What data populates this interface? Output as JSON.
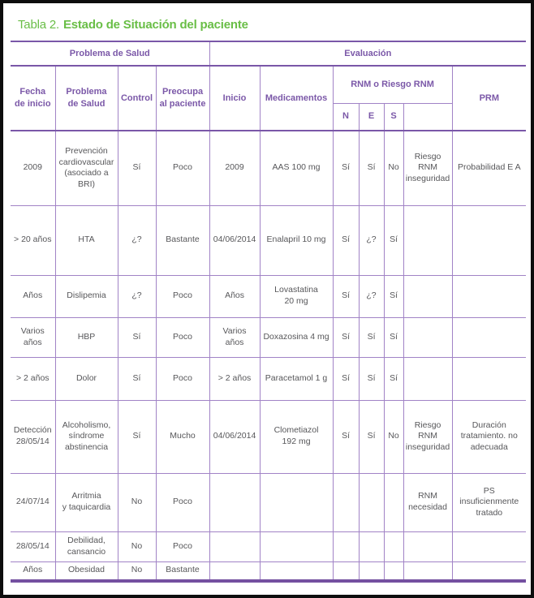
{
  "title": {
    "prefix": "Tabla 2.",
    "text": "Estado de Situación del paciente"
  },
  "colors": {
    "title_green": "#69be46",
    "header_purple": "#7b58a8",
    "line_purple": "#a183c6",
    "rule_purple": "#7a57a8",
    "body_text": "#57575a"
  },
  "table": {
    "group_headers": {
      "problema": "Problema de Salud",
      "evaluacion": "Evaluación"
    },
    "columns": {
      "fecha": "Fecha\nde inicio",
      "problema": "Problema\nde Salud",
      "control": "Control",
      "preocupa": "Preocupa\nal paciente",
      "inicio": "Inicio",
      "medicamentos": "Medicamentos",
      "rnm_group": "RNM o Riesgo RNM",
      "rnm_sub": [
        "N",
        "E",
        "S",
        ""
      ],
      "prm": "PRM"
    },
    "rows": [
      [
        "2009",
        "Prevención\ncardiovascular\n(asociado a\nBRI)",
        "Sí",
        "Poco",
        "2009",
        "AAS 100 mg",
        "Sí",
        "Sí",
        "No",
        "Riesgo\nRNM\ninseguridad",
        "Probabilidad E A"
      ],
      [
        "> 20 años",
        "HTA",
        "¿?",
        "Bastante",
        "04/06/2014",
        "Enalapril 10 mg",
        "Sí",
        "¿?",
        "Sí",
        "",
        ""
      ],
      [
        "Años",
        "Dislipemia",
        "¿?",
        "Poco",
        "Años",
        "Lovastatina\n20 mg",
        "Sí",
        "¿?",
        "Sí",
        "",
        ""
      ],
      [
        "Varios\naños",
        "HBP",
        "Sí",
        "Poco",
        "Varios\naños",
        "Doxazosina 4 mg",
        "Sí",
        "Sí",
        "Sí",
        "",
        ""
      ],
      [
        "> 2 años",
        "Dolor",
        "Sí",
        "Poco",
        "> 2 años",
        "Paracetamol 1 g",
        "Sí",
        "Sí",
        "Sí",
        "",
        ""
      ],
      [
        "Detección\n28/05/14",
        "Alcoholismo,\nsíndrome\nabstinencia",
        "Sí",
        "Mucho",
        "04/06/2014",
        "Clometiazol\n192 mg",
        "Sí",
        "Sí",
        "No",
        "Riesgo\nRNM\ninseguridad",
        "Duración\ntratamiento. no\nadecuada"
      ],
      [
        "24/07/14",
        "Arritmia\ny taquicardia",
        "No",
        "Poco",
        "",
        "",
        "",
        "",
        "",
        "RNM\nnecesidad",
        "PS\ninsuficienmente\ntratado"
      ],
      [
        "28/05/14",
        "Debilidad,\ncansancio",
        "No",
        "Poco",
        "",
        "",
        "",
        "",
        "",
        "",
        ""
      ],
      [
        "Años",
        "Obesidad",
        "No",
        "Bastante",
        "",
        "",
        "",
        "",
        "",
        "",
        ""
      ]
    ]
  }
}
